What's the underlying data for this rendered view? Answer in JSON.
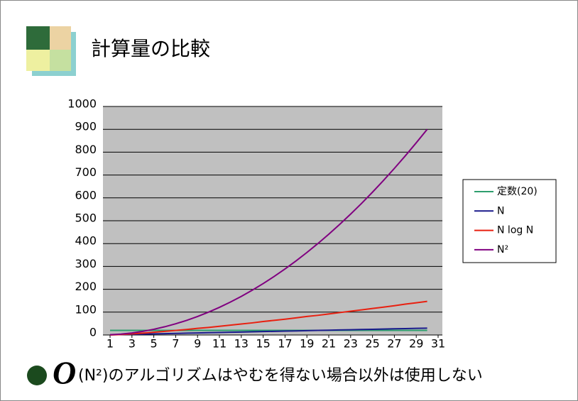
{
  "chart_data": {
    "type": "line",
    "title": "計算量の比較",
    "x": [
      1,
      2,
      3,
      4,
      5,
      6,
      7,
      8,
      9,
      10,
      11,
      12,
      13,
      14,
      15,
      16,
      17,
      18,
      19,
      20,
      21,
      22,
      23,
      24,
      25,
      26,
      27,
      28,
      29,
      30
    ],
    "xlim": [
      1,
      31
    ],
    "xticks": [
      1,
      3,
      5,
      7,
      9,
      11,
      13,
      15,
      17,
      19,
      21,
      23,
      25,
      27,
      29,
      31
    ],
    "ylim": [
      0,
      1000
    ],
    "yticks": [
      0,
      100,
      200,
      300,
      400,
      500,
      600,
      700,
      800,
      900,
      1000
    ],
    "grid": true,
    "series": [
      {
        "name": "定数(20)",
        "color": "#2e9e6e",
        "values": [
          20,
          20,
          20,
          20,
          20,
          20,
          20,
          20,
          20,
          20,
          20,
          20,
          20,
          20,
          20,
          20,
          20,
          20,
          20,
          20,
          20,
          20,
          20,
          20,
          20,
          20,
          20,
          20,
          20,
          20
        ]
      },
      {
        "name": "N",
        "color": "#1a1a8c",
        "values": [
          1,
          2,
          3,
          4,
          5,
          6,
          7,
          8,
          9,
          10,
          11,
          12,
          13,
          14,
          15,
          16,
          17,
          18,
          19,
          20,
          21,
          22,
          23,
          24,
          25,
          26,
          27,
          28,
          29,
          30
        ]
      },
      {
        "name": "N log N",
        "color": "#e82010",
        "values": [
          0,
          2,
          5,
          8,
          12,
          16,
          20,
          24,
          29,
          33,
          38,
          43,
          48,
          53,
          59,
          64,
          69,
          75,
          81,
          86,
          92,
          98,
          104,
          110,
          116,
          122,
          128,
          135,
          141,
          147
        ]
      },
      {
        "name": "N²",
        "color": "#800080",
        "values": [
          1,
          4,
          9,
          16,
          25,
          36,
          49,
          64,
          81,
          100,
          121,
          144,
          169,
          196,
          225,
          256,
          289,
          324,
          361,
          400,
          441,
          484,
          529,
          576,
          625,
          676,
          729,
          784,
          841,
          900
        ]
      }
    ],
    "legend": "right"
  },
  "footer": {
    "symbol": "O",
    "text": "(N²)のアルゴリズムはやむを得ない場合以外は使用しない"
  }
}
